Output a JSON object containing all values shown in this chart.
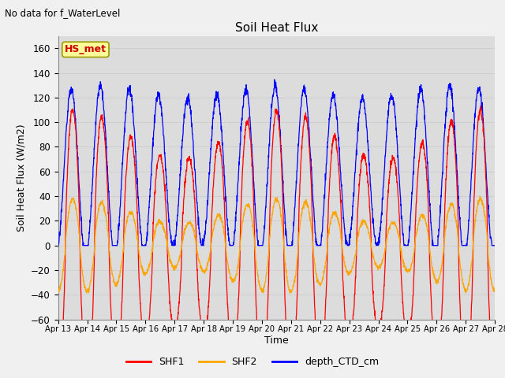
{
  "title": "Soil Heat Flux",
  "suptitle": "No data for f_WaterLevel",
  "xlabel": "Time",
  "ylabel": "Soil Heat Flux (W/m2)",
  "ylim": [
    -60,
    170
  ],
  "yticks": [
    -60,
    -40,
    -20,
    0,
    20,
    40,
    60,
    80,
    100,
    120,
    140,
    160
  ],
  "legend_label": "HS_met",
  "series_labels": [
    "SHF1",
    "SHF2",
    "depth_CTD_cm"
  ],
  "colors": {
    "SHF1": "#ff0000",
    "SHF2": "#ffa500",
    "depth_CTD_cm": "#0000ff"
  },
  "grid_color": "#d0d0d0",
  "bg_color": "#dcdcdc",
  "fig_color": "#f0f0f0",
  "hs_met_color": "#cc0000",
  "hs_met_bg": "#ffff99",
  "hs_met_border": "#999900"
}
